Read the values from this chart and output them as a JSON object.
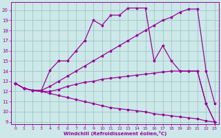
{
  "xlabel": "Windchill (Refroidissement éolien,°C)",
  "bg_color": "#cce8e8",
  "grid_color": "#9bbfbf",
  "line_color": "#990099",
  "xlim": [
    -0.5,
    23.5
  ],
  "ylim": [
    8.8,
    20.8
  ],
  "xticks": [
    0,
    1,
    2,
    3,
    4,
    5,
    6,
    7,
    8,
    9,
    10,
    11,
    12,
    13,
    14,
    15,
    16,
    17,
    18,
    19,
    20,
    21,
    22,
    23
  ],
  "yticks": [
    9,
    10,
    11,
    12,
    13,
    14,
    15,
    16,
    17,
    18,
    19,
    20
  ],
  "lines": [
    {
      "x": [
        0,
        1,
        2,
        3,
        4,
        5,
        6,
        7,
        8,
        9,
        10,
        11,
        12,
        13,
        14,
        15,
        16,
        17,
        18,
        19,
        20,
        21,
        22,
        23
      ],
      "y": [
        12.8,
        12.3,
        12.1,
        12.1,
        14.1,
        15.0,
        15.0,
        16.0,
        17.0,
        19.0,
        18.5,
        19.5,
        19.5,
        20.2,
        20.2,
        20.2,
        15.0,
        16.5,
        15.0,
        14.0,
        14.0,
        14.0,
        10.8,
        9.0
      ]
    },
    {
      "x": [
        0,
        1,
        2,
        3,
        4,
        5,
        6,
        7,
        8,
        9,
        10,
        11,
        12,
        13,
        14,
        15,
        16,
        17,
        18,
        19,
        20,
        21,
        22,
        23
      ],
      "y": [
        12.8,
        12.3,
        12.1,
        12.1,
        12.5,
        13.0,
        13.5,
        14.0,
        14.5,
        15.0,
        15.5,
        16.0,
        16.5,
        17.0,
        17.5,
        18.0,
        18.5,
        19.0,
        19.3,
        19.8,
        20.1,
        20.1,
        14.0,
        10.8
      ]
    },
    {
      "x": [
        0,
        1,
        2,
        3,
        4,
        5,
        6,
        7,
        8,
        9,
        10,
        11,
        12,
        13,
        14,
        15,
        16,
        17,
        18,
        19,
        20,
        21,
        22,
        23
      ],
      "y": [
        12.8,
        12.3,
        12.1,
        12.0,
        12.0,
        12.2,
        12.5,
        12.7,
        12.9,
        13.0,
        13.2,
        13.3,
        13.4,
        13.5,
        13.6,
        13.7,
        13.8,
        13.9,
        14.0,
        14.0,
        14.0,
        14.0,
        10.8,
        9.0
      ]
    },
    {
      "x": [
        0,
        1,
        2,
        3,
        4,
        5,
        6,
        7,
        8,
        9,
        10,
        11,
        12,
        13,
        14,
        15,
        16,
        17,
        18,
        19,
        20,
        21,
        22,
        23
      ],
      "y": [
        12.8,
        12.3,
        12.1,
        12.0,
        11.8,
        11.6,
        11.4,
        11.2,
        11.0,
        10.8,
        10.6,
        10.4,
        10.3,
        10.2,
        10.1,
        10.0,
        9.8,
        9.7,
        9.6,
        9.5,
        9.4,
        9.3,
        9.1,
        9.0
      ]
    }
  ]
}
